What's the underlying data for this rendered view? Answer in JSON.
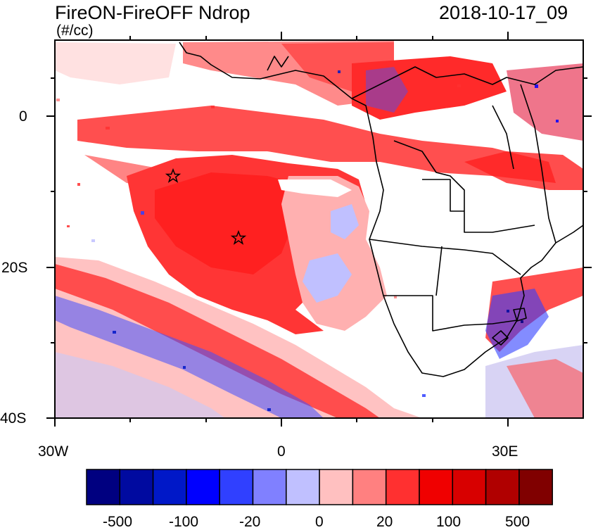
{
  "header": {
    "title": "FireON-FireOFF Ndrop",
    "datetime": "2018-10-17_09",
    "units": "(#/cc)"
  },
  "map": {
    "lon_labels": [
      "30W",
      "0",
      "30E"
    ],
    "lat_labels": [
      "0",
      "20S",
      "40S"
    ],
    "extent": {
      "lon_min": -30,
      "lon_max": 40,
      "lat_min": -40,
      "lat_max": 10
    },
    "markers": [
      {
        "name": "star-marker",
        "lon": -14.5,
        "lat": -8
      },
      {
        "name": "star-marker",
        "lon": -5.7,
        "lat": -16
      }
    ]
  },
  "colorbar": {
    "labels": [
      "-500",
      "-100",
      "-20",
      "0",
      "20",
      "100",
      "500"
    ],
    "colors": [
      "#000080",
      "#000aa0",
      "#0018c8",
      "#0000ff",
      "#3040ff",
      "#8080ff",
      "#c0c0ff",
      "#ffc0c0",
      "#ff8080",
      "#ff3030",
      "#f00000",
      "#d80000",
      "#b00000",
      "#800000"
    ]
  }
}
